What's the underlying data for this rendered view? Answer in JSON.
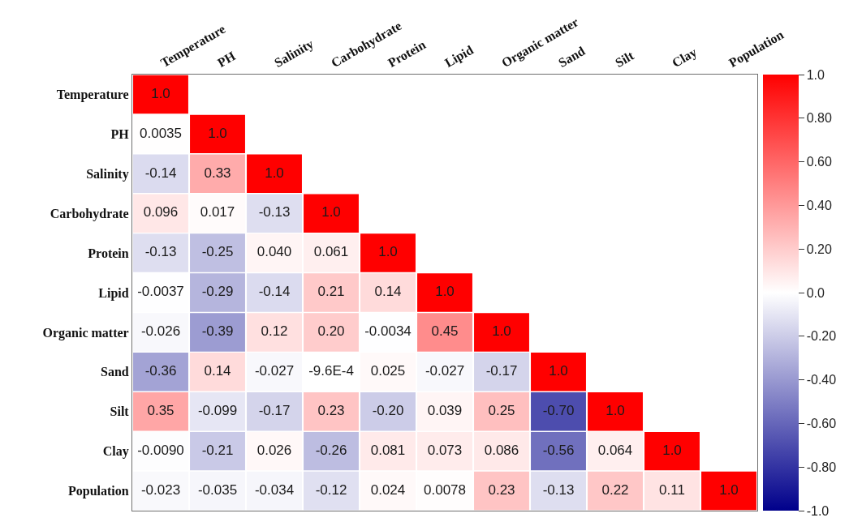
{
  "chart_data": {
    "type": "heatmap",
    "categories": [
      "Temperature",
      "PH",
      "Salinity",
      "Carbohydrate",
      "Protein",
      "Lipid",
      "Organic matter",
      "Sand",
      "Silt",
      "Clay",
      "Population"
    ],
    "y_categories": [
      "Temperature",
      "PH",
      "Salinity",
      "Carbohydrate",
      "Protein",
      "Lipid",
      "Organic matter",
      "Sand",
      "Silt",
      "Clay",
      "Population"
    ],
    "cells": [
      [
        1.0,
        null,
        null,
        null,
        null,
        null,
        null,
        null,
        null,
        null,
        null
      ],
      [
        0.0035,
        1.0,
        null,
        null,
        null,
        null,
        null,
        null,
        null,
        null,
        null
      ],
      [
        -0.14,
        0.33,
        1.0,
        null,
        null,
        null,
        null,
        null,
        null,
        null,
        null
      ],
      [
        0.096,
        0.017,
        -0.13,
        1.0,
        null,
        null,
        null,
        null,
        null,
        null,
        null
      ],
      [
        -0.13,
        -0.25,
        0.04,
        0.061,
        1.0,
        null,
        null,
        null,
        null,
        null,
        null
      ],
      [
        -0.0037,
        -0.29,
        -0.14,
        0.21,
        0.14,
        1.0,
        null,
        null,
        null,
        null,
        null
      ],
      [
        -0.026,
        -0.39,
        0.12,
        0.2,
        -0.0034,
        0.45,
        1.0,
        null,
        null,
        null,
        null
      ],
      [
        -0.36,
        0.14,
        -0.027,
        -0.00096,
        0.025,
        -0.027,
        -0.17,
        1.0,
        null,
        null,
        null
      ],
      [
        0.35,
        -0.099,
        -0.17,
        0.23,
        -0.2,
        0.039,
        0.25,
        -0.7,
        1.0,
        null,
        null
      ],
      [
        -0.009,
        -0.21,
        0.026,
        -0.26,
        0.081,
        0.073,
        0.086,
        -0.56,
        0.064,
        1.0,
        null
      ],
      [
        -0.023,
        -0.035,
        -0.034,
        -0.12,
        0.024,
        0.0078,
        0.23,
        -0.13,
        0.22,
        0.11,
        1.0
      ]
    ],
    "cell_labels": [
      [
        "1.0",
        null,
        null,
        null,
        null,
        null,
        null,
        null,
        null,
        null,
        null
      ],
      [
        "0.0035",
        "1.0",
        null,
        null,
        null,
        null,
        null,
        null,
        null,
        null,
        null
      ],
      [
        "-0.14",
        "0.33",
        "1.0",
        null,
        null,
        null,
        null,
        null,
        null,
        null,
        null
      ],
      [
        "0.096",
        "0.017",
        "-0.13",
        "1.0",
        null,
        null,
        null,
        null,
        null,
        null,
        null
      ],
      [
        "-0.13",
        "-0.25",
        "0.040",
        "0.061",
        "1.0",
        null,
        null,
        null,
        null,
        null,
        null
      ],
      [
        "-0.0037",
        "-0.29",
        "-0.14",
        "0.21",
        "0.14",
        "1.0",
        null,
        null,
        null,
        null,
        null
      ],
      [
        "-0.026",
        "-0.39",
        "0.12",
        "0.20",
        "-0.0034",
        "0.45",
        "1.0",
        null,
        null,
        null,
        null
      ],
      [
        "-0.36",
        "0.14",
        "-0.027",
        "-9.6E-4",
        "0.025",
        "-0.027",
        "-0.17",
        "1.0",
        null,
        null,
        null
      ],
      [
        "0.35",
        "-0.099",
        "-0.17",
        "0.23",
        "-0.20",
        "0.039",
        "0.25",
        "-0.70",
        "1.0",
        null,
        null
      ],
      [
        "-0.0090",
        "-0.21",
        "0.026",
        "-0.26",
        "0.081",
        "0.073",
        "0.086",
        "-0.56",
        "0.064",
        "1.0",
        null
      ],
      [
        "-0.023",
        "-0.035",
        "-0.034",
        "-0.12",
        "0.024",
        "0.0078",
        "0.23",
        "-0.13",
        "0.22",
        "0.11",
        "1.0"
      ]
    ],
    "clim": [
      -1.0,
      1.0
    ],
    "cticks": [
      {
        "value": 1.0,
        "label": "1.0"
      },
      {
        "value": 0.8,
        "label": "0.80"
      },
      {
        "value": 0.6,
        "label": "0.60"
      },
      {
        "value": 0.4,
        "label": "0.40"
      },
      {
        "value": 0.2,
        "label": "0.20"
      },
      {
        "value": 0.0,
        "label": "0.0"
      },
      {
        "value": -0.2,
        "label": "-0.20"
      },
      {
        "value": -0.4,
        "label": "-0.40"
      },
      {
        "value": -0.6,
        "label": "-0.60"
      },
      {
        "value": -0.8,
        "label": "-0.80"
      },
      {
        "value": -1.0,
        "label": "-1.0"
      }
    ]
  }
}
